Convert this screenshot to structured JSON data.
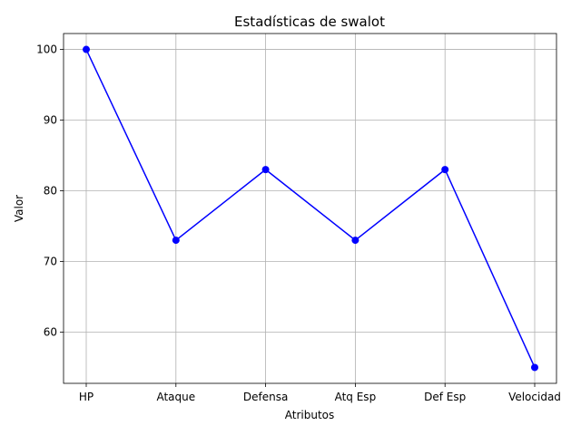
{
  "chart_data": {
    "type": "line",
    "title": "Estadísticas de swalot",
    "xlabel": "Atributos",
    "ylabel": "Valor",
    "categories": [
      "HP",
      "Ataque",
      "Defensa",
      "Atq Esp",
      "Def Esp",
      "Velocidad"
    ],
    "series": [
      {
        "values": [
          100,
          73,
          83,
          73,
          83,
          55
        ],
        "color": "#0000ff",
        "marker": "circle"
      }
    ],
    "ylim": [
      52.75,
      102.25
    ],
    "yticks": [
      60,
      70,
      80,
      90,
      100
    ],
    "grid": true
  }
}
